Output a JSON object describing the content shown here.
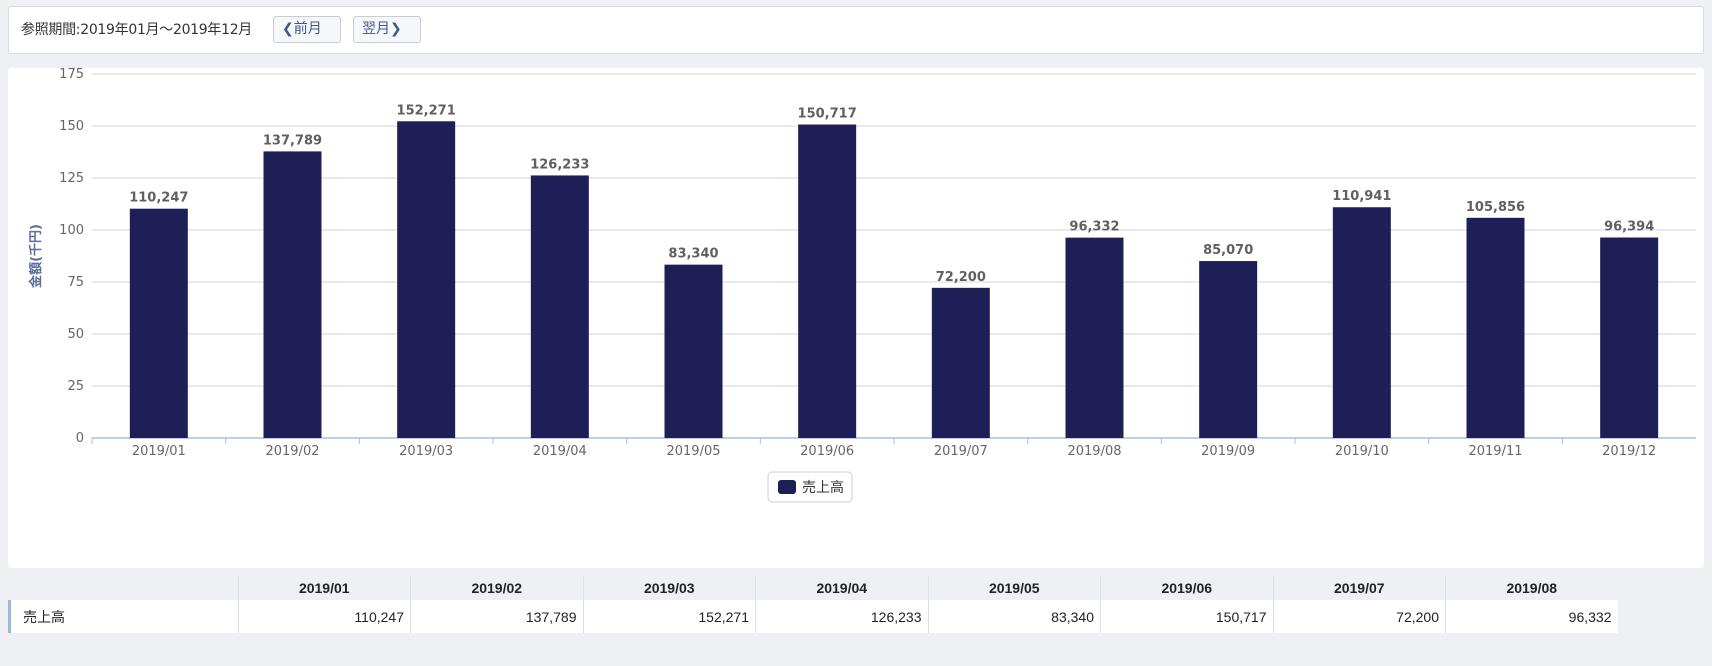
{
  "header": {
    "period": "参照期間:2019年01月～2019年12月",
    "prev_label": "前月",
    "next_label": "翌月"
  },
  "chart_data": {
    "type": "bar",
    "categories": [
      "2019/01",
      "2019/02",
      "2019/03",
      "2019/04",
      "2019/05",
      "2019/06",
      "2019/07",
      "2019/08",
      "2019/09",
      "2019/10",
      "2019/11",
      "2019/12"
    ],
    "series": [
      {
        "name": "売上高",
        "values": [
          110247,
          137789,
          152271,
          126233,
          83340,
          150717,
          72200,
          96332,
          85070,
          110941,
          105856,
          96394
        ],
        "labels": [
          "110,247",
          "137,789",
          "152,271",
          "126,233",
          "83,340",
          "150,717",
          "72,200",
          "96,332",
          "85,070",
          "110,941",
          "105,856",
          "96,394"
        ]
      }
    ],
    "ylabel": "金額(千円)",
    "ylim": [
      0,
      175
    ],
    "yticks": [
      0,
      25,
      50,
      75,
      100,
      125,
      150,
      175
    ],
    "y_unit_divisor": 1000,
    "legend_position": "bottom-center",
    "grid": true,
    "colors": {
      "bar": "#1f1f57",
      "grid": "#d6d6d6",
      "axis": "#a9c1dc",
      "label": "#606060",
      "ylabel": "#5a6f9a"
    }
  },
  "table": {
    "row_label": "売上高",
    "columns": [
      "2019/01",
      "2019/02",
      "2019/03",
      "2019/04",
      "2019/05",
      "2019/06",
      "2019/07",
      "2019/08"
    ],
    "values": [
      "110,247",
      "137,789",
      "152,271",
      "126,233",
      "83,340",
      "150,717",
      "72,200",
      "96,332"
    ]
  }
}
